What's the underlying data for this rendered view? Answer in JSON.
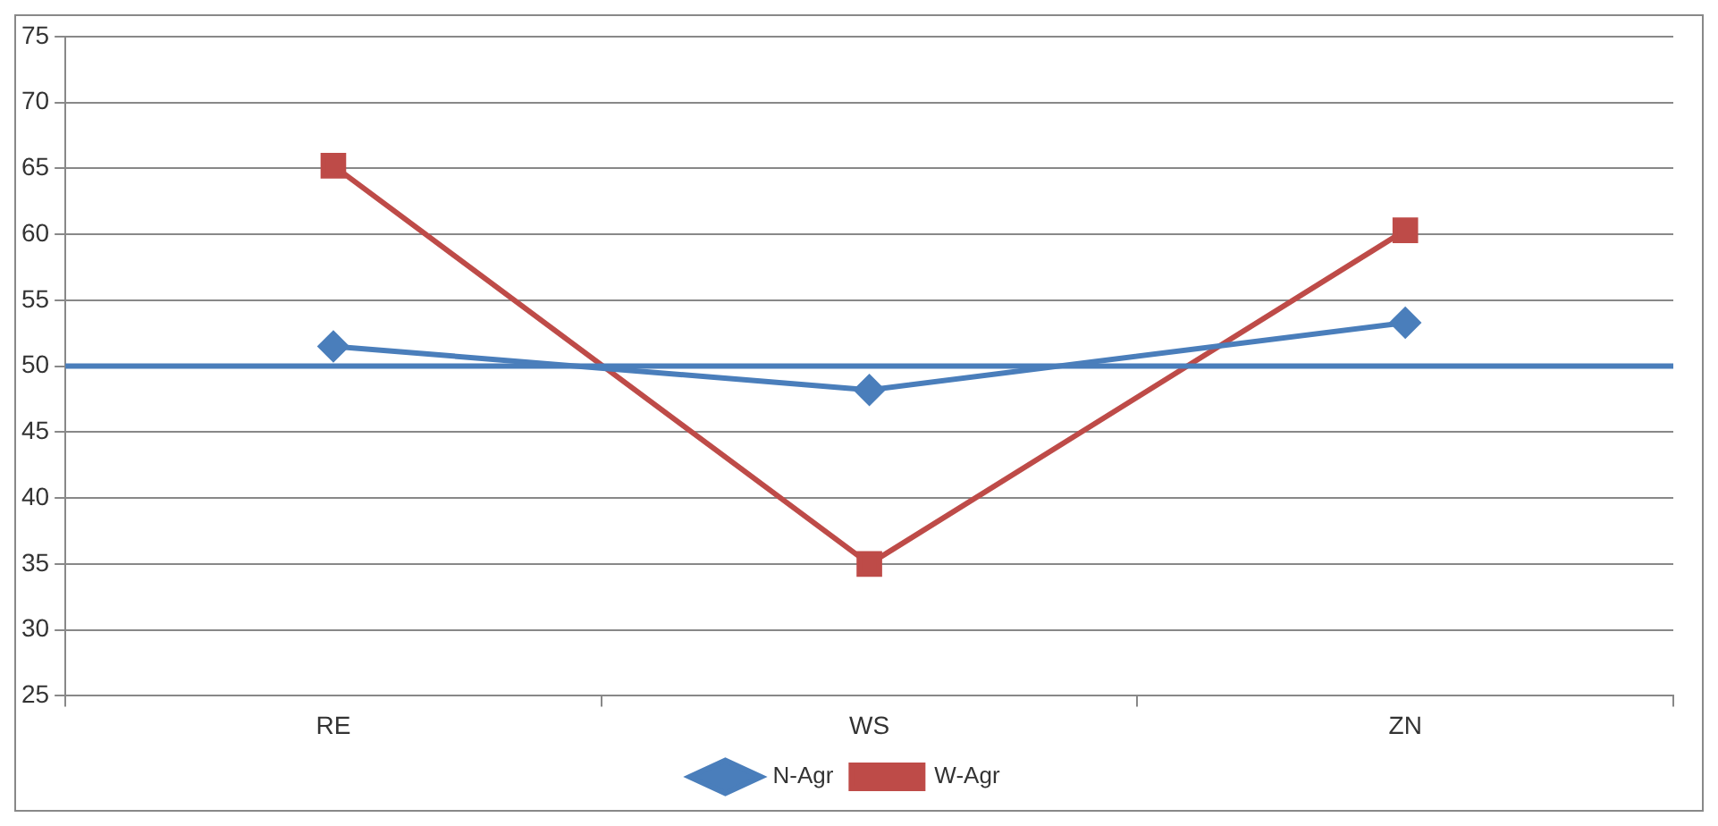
{
  "chart_data": {
    "type": "line",
    "categories": [
      "RE",
      "WS",
      "ZN"
    ],
    "series": [
      {
        "name": "N-Agr",
        "color": "#4a7ebb",
        "values": [
          51.5,
          48.2,
          53.3
        ],
        "marker": "diamond"
      },
      {
        "name": "W-Agr",
        "color": "#be4b48",
        "values": [
          65.2,
          35,
          60.3
        ],
        "marker": "square"
      }
    ],
    "ylim": [
      25,
      75
    ],
    "yticks": [
      25,
      30,
      35,
      40,
      45,
      50,
      55,
      60,
      65,
      70,
      75
    ],
    "grid": "y",
    "legend": "bottom",
    "ref_lines": [
      {
        "axis": "y",
        "value": 50,
        "color": "#4a7ebb",
        "line_style": "solid"
      }
    ]
  }
}
